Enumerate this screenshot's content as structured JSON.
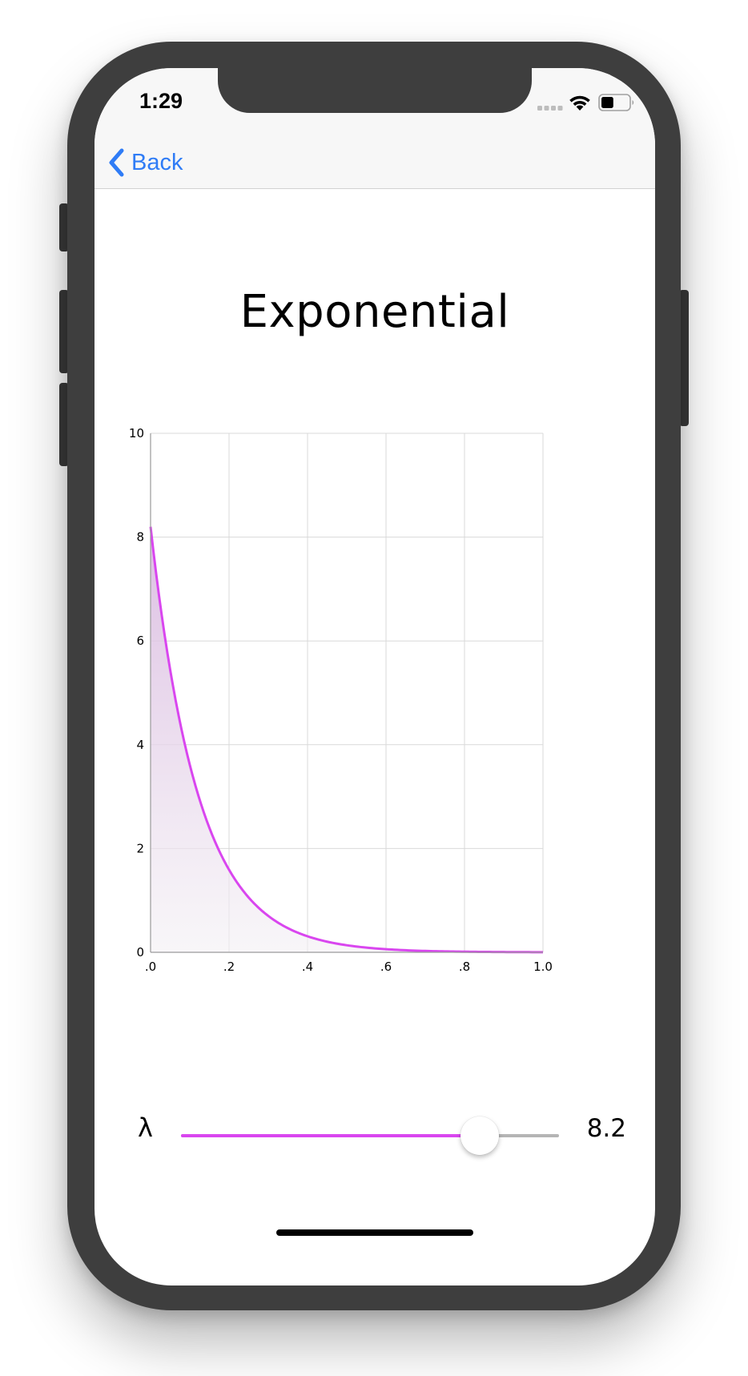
{
  "status_bar": {
    "time": "1:29",
    "icons": [
      "signal-icon",
      "wifi-icon",
      "battery-icon"
    ],
    "battery_level": 0.45
  },
  "nav": {
    "back_label": "Back",
    "back_icon": "chevron-left-icon",
    "tint": "#2f7cf6"
  },
  "title": "Exponential",
  "chart_data": {
    "type": "area",
    "title": "",
    "xlabel": "",
    "ylabel": "",
    "xlim": [
      0,
      1
    ],
    "ylim": [
      0,
      10
    ],
    "x_ticks": [
      ".0",
      ".2",
      ".4",
      ".6",
      ".8",
      "1.0"
    ],
    "y_ticks": [
      "0",
      "2",
      "4",
      "6",
      "8",
      "10"
    ],
    "grid": true,
    "series": [
      {
        "function": "lambda * exp(-lambda * x)",
        "lambda": 8.2,
        "color": "#d946ef",
        "x": [
          0.0,
          0.05,
          0.1,
          0.15,
          0.2,
          0.25,
          0.3,
          0.35,
          0.4,
          0.5,
          0.6,
          0.7,
          0.8,
          0.9,
          1.0
        ],
        "y": [
          8.2,
          5.44,
          3.61,
          2.39,
          1.59,
          1.05,
          0.7,
          0.46,
          0.31,
          0.14,
          0.06,
          0.03,
          0.01,
          0.005,
          0.002
        ]
      }
    ]
  },
  "parameter": {
    "symbol": "λ",
    "value": "8.2",
    "slider_fraction": 0.79,
    "slider_color": "#d946ef"
  }
}
